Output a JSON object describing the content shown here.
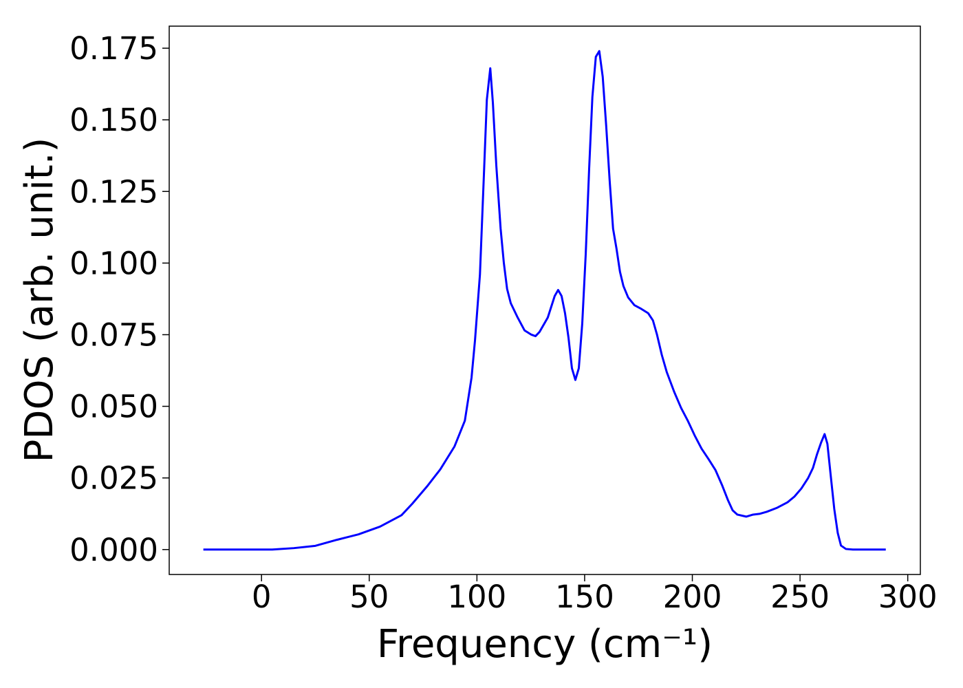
{
  "chart_data": {
    "type": "line",
    "xlabel": "Frequency (cm⁻¹)",
    "ylabel": "PDOS (arb. unit.)",
    "x": [
      -27,
      5,
      15,
      25,
      35,
      45,
      55,
      65,
      70,
      76.8,
      83,
      89.6,
      94.4,
      97.5,
      99.1,
      101.4,
      103.3,
      104.6,
      106.2,
      107.4,
      109,
      111,
      112.5,
      114,
      115.7,
      118.9,
      122.1,
      125.3,
      127.2,
      129.1,
      132.9,
      136.1,
      137.7,
      139.3,
      140.9,
      142.5,
      144.1,
      145.7,
      147.3,
      148.9,
      150.5,
      152.1,
      153.6,
      155.2,
      156.8,
      158.4,
      160,
      161.6,
      163.2,
      164.8,
      166.4,
      168,
      170.2,
      173.1,
      176.3,
      179.5,
      181.7,
      183.6,
      185.8,
      188.1,
      191.6,
      194.8,
      198,
      201.1,
      204.3,
      207.5,
      210.7,
      213.9,
      216.5,
      218.7,
      220.9,
      225,
      228.2,
      231.4,
      234.6,
      239.4,
      244.2,
      247.4,
      250.6,
      253.7,
      256,
      257.9,
      259.8,
      261.4,
      262.7,
      264.3,
      265.9,
      267.5,
      269,
      271.3,
      274.5,
      289.8
    ],
    "series": [
      {
        "name": "PDOS",
        "color": "#0000ff",
        "values": [
          0,
          0,
          0.0005,
          0.0013,
          0.0034,
          0.0053,
          0.008,
          0.012,
          0.016,
          0.022,
          0.028,
          0.036,
          0.045,
          0.06,
          0.073,
          0.096,
          0.132,
          0.157,
          0.168,
          0.156,
          0.134,
          0.112,
          0.1,
          0.091,
          0.086,
          0.081,
          0.0765,
          0.075,
          0.0745,
          0.076,
          0.081,
          0.0885,
          0.0906,
          0.0885,
          0.0825,
          0.074,
          0.0633,
          0.0592,
          0.0633,
          0.079,
          0.103,
          0.133,
          0.158,
          0.172,
          0.174,
          0.165,
          0.148,
          0.129,
          0.112,
          0.105,
          0.097,
          0.092,
          0.088,
          0.0853,
          0.084,
          0.0825,
          0.08,
          0.075,
          0.068,
          0.062,
          0.055,
          0.0494,
          0.0448,
          0.0398,
          0.0352,
          0.0316,
          0.0278,
          0.0223,
          0.0173,
          0.0137,
          0.0122,
          0.0115,
          0.0122,
          0.0125,
          0.0132,
          0.0146,
          0.0165,
          0.0185,
          0.0213,
          0.0249,
          0.0285,
          0.0333,
          0.0374,
          0.0403,
          0.0369,
          0.0254,
          0.0141,
          0.0058,
          0.0014,
          0.0002,
          0,
          0
        ]
      }
    ],
    "xlim": [
      -42.85,
      305.85
    ],
    "ylim": [
      -0.0087,
      0.1827
    ],
    "xticks": [
      0,
      50,
      100,
      150,
      200,
      250,
      300
    ],
    "yticks": [
      {
        "value": 0,
        "label": "0.000"
      },
      {
        "value": 0.025,
        "label": "0.025"
      },
      {
        "value": 0.05,
        "label": "0.050"
      },
      {
        "value": 0.075,
        "label": "0.075"
      },
      {
        "value": 0.1,
        "label": "0.100"
      },
      {
        "value": 0.125,
        "label": "0.125"
      },
      {
        "value": 0.15,
        "label": "0.150"
      },
      {
        "value": 0.175,
        "label": "0.175"
      }
    ],
    "grid": false
  }
}
